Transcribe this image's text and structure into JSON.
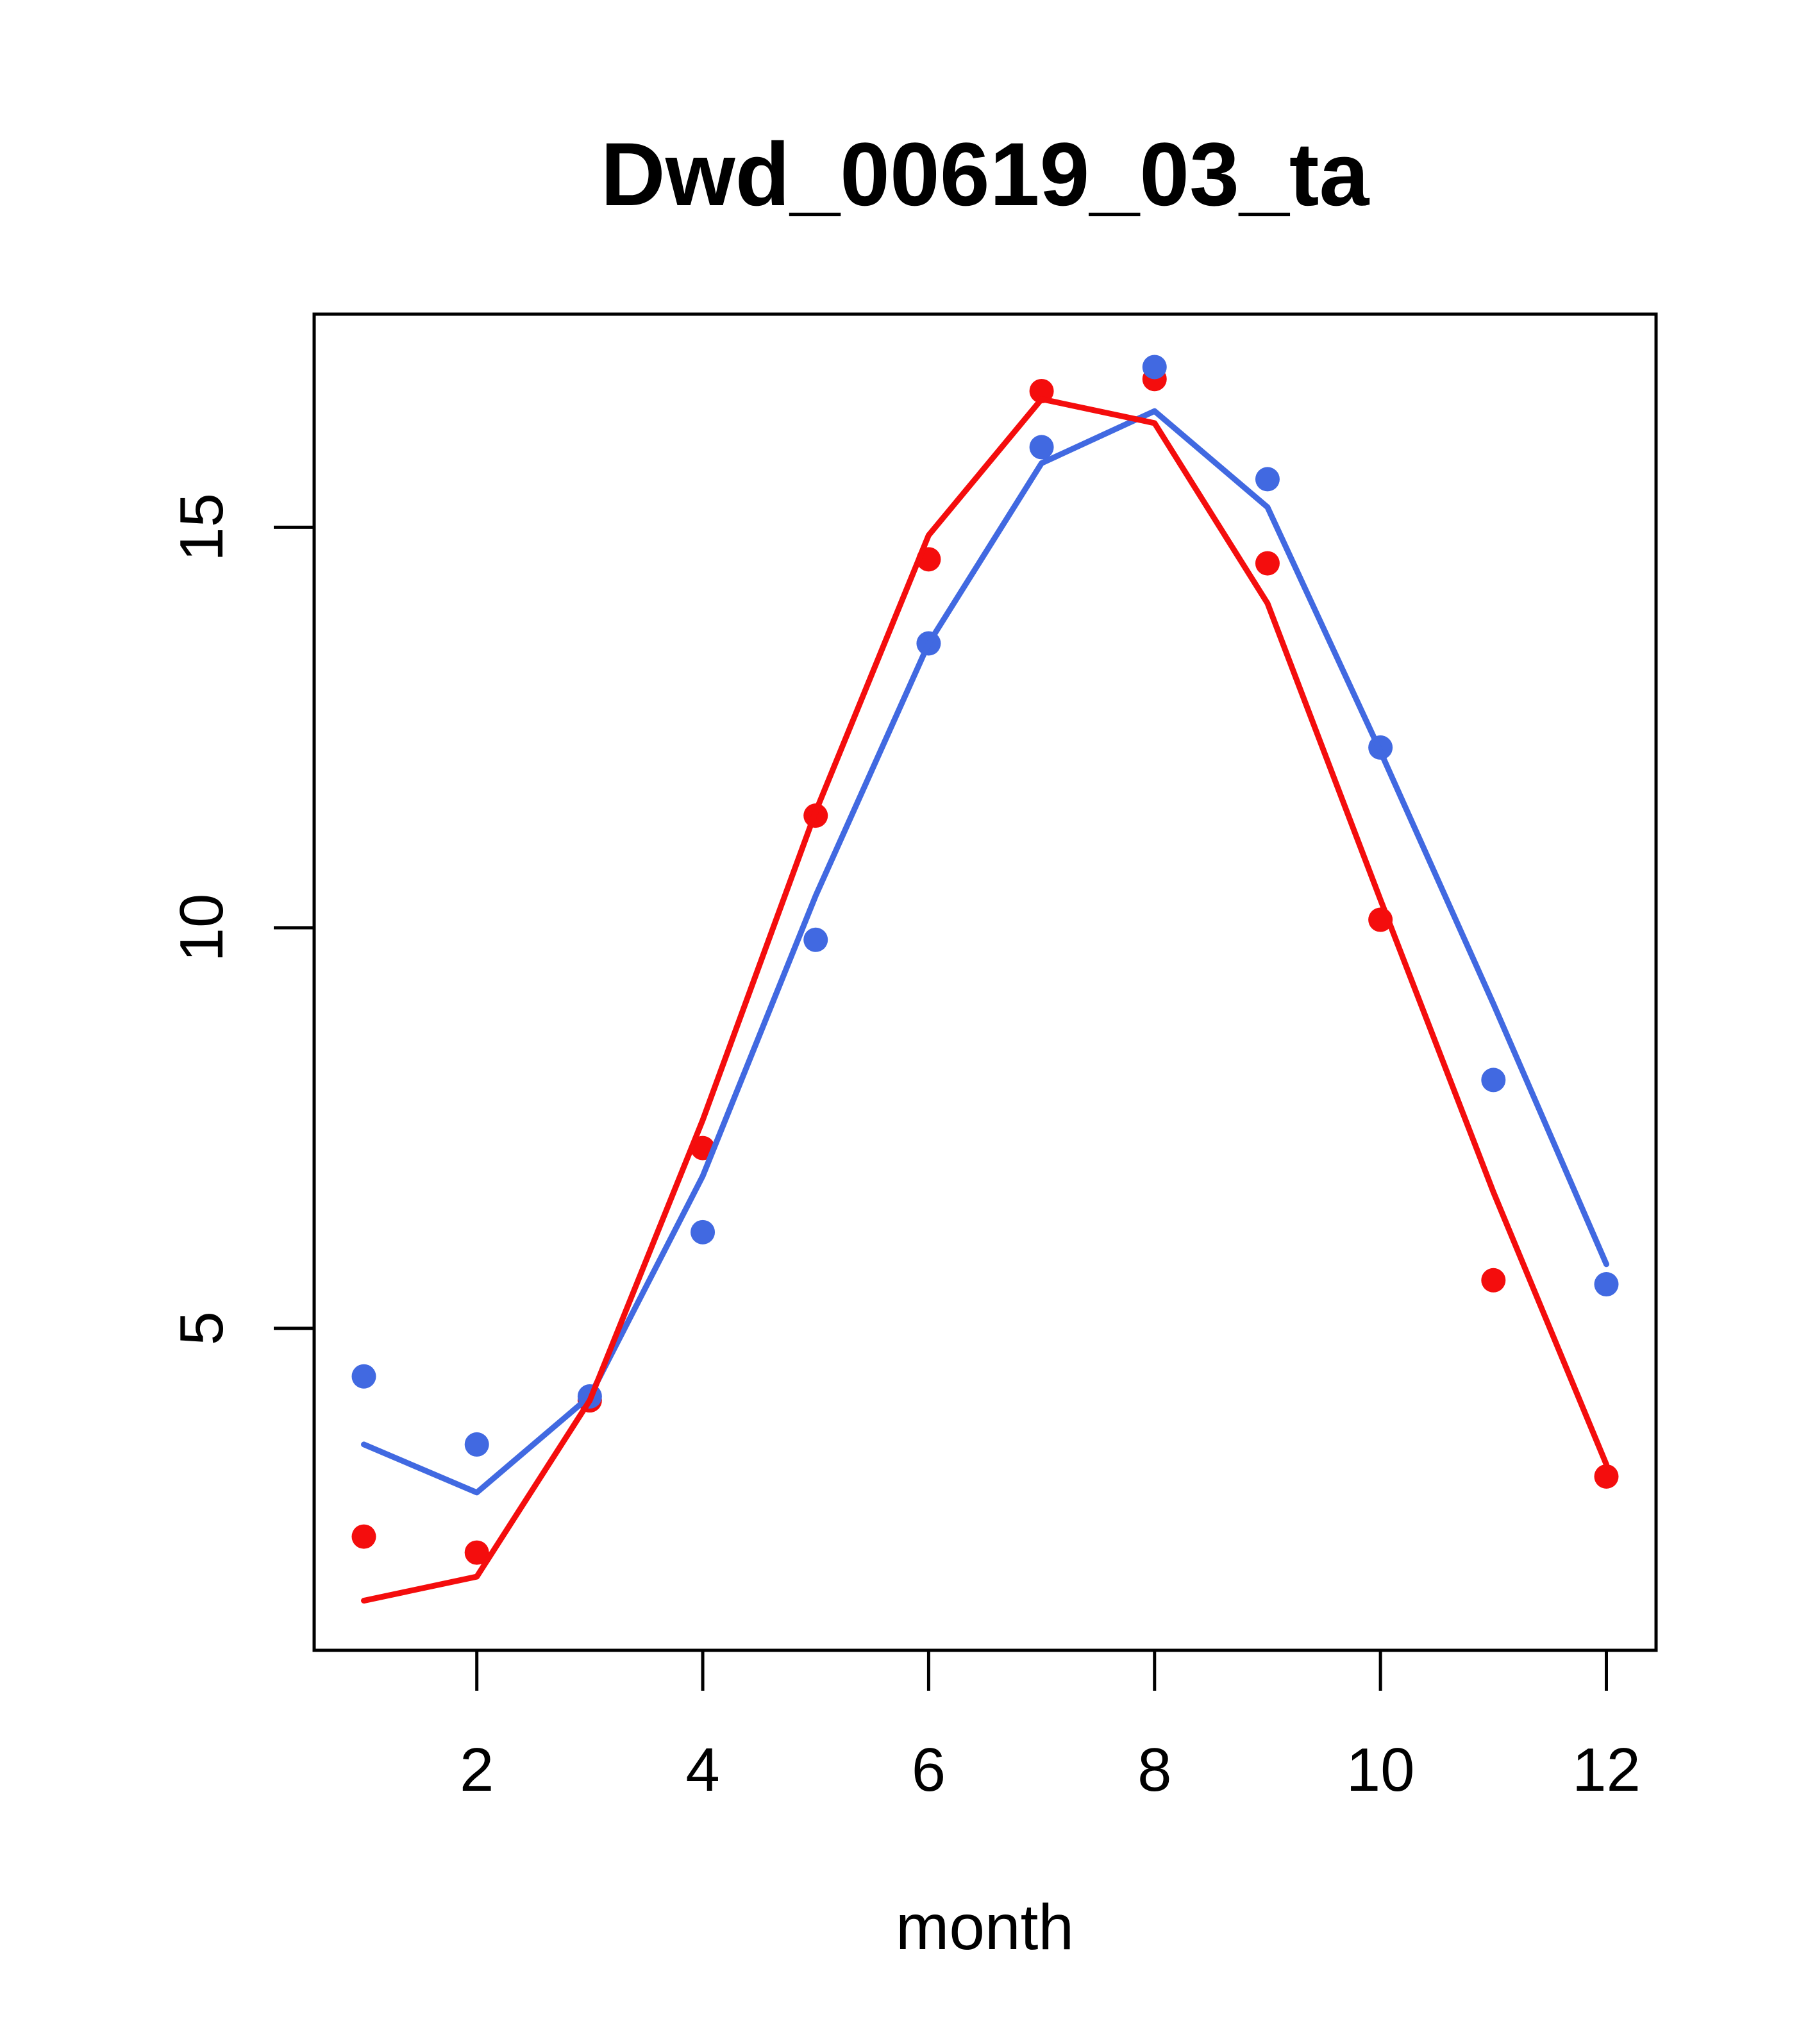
{
  "chart_data": {
    "type": "line",
    "title": "Dwd_00619_03_ta",
    "xlabel": "month",
    "ylabel": "",
    "x": [
      1,
      2,
      3,
      4,
      5,
      6,
      7,
      8,
      9,
      10,
      11,
      12
    ],
    "x_tick_labels": [
      "2",
      "4",
      "6",
      "8",
      "10",
      "12"
    ],
    "x_ticks": [
      2,
      4,
      6,
      8,
      10,
      12
    ],
    "y_tick_labels": [
      "5",
      "10",
      "15"
    ],
    "y_ticks": [
      5,
      10,
      15
    ],
    "xlim": [
      0.56,
      12.44
    ],
    "ylim": [
      0.98,
      17.66
    ],
    "grid": false,
    "legend_position": "none",
    "colors": {
      "red_series": "#F40D0D",
      "blue_series": "#4169E1",
      "axis": "#000000",
      "background": "#FFFFFF"
    },
    "series": [
      {
        "name": "red-points",
        "style": "points",
        "color": "#F40D0D",
        "values": [
          2.4,
          2.2,
          4.1,
          7.25,
          11.4,
          14.6,
          16.7,
          16.85,
          14.55,
          10.1,
          5.6,
          3.15
        ]
      },
      {
        "name": "blue-points",
        "style": "points",
        "color": "#4169E1",
        "values": [
          4.4,
          3.55,
          4.15,
          6.2,
          9.85,
          13.55,
          16.0,
          17.0,
          15.6,
          12.25,
          8.1,
          5.55
        ]
      },
      {
        "name": "blue-line",
        "style": "line",
        "color": "#4169E1",
        "values": [
          3.55,
          2.95,
          4.15,
          6.9,
          10.4,
          13.55,
          15.8,
          16.45,
          15.25,
          12.2,
          9.05,
          5.8
        ]
      },
      {
        "name": "red-line",
        "style": "line",
        "color": "#F40D0D",
        "values": [
          1.6,
          1.9,
          4.1,
          7.6,
          11.45,
          14.9,
          16.6,
          16.3,
          14.05,
          10.35,
          6.7,
          3.3
        ]
      }
    ]
  }
}
